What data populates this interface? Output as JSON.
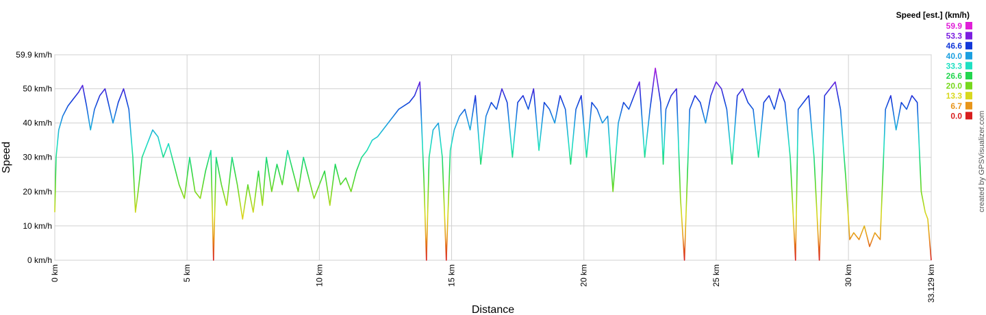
{
  "chart_data": {
    "type": "line",
    "xlabel": "Distance",
    "ylabel": "Speed",
    "xlim": [
      0,
      33.129
    ],
    "ylim": [
      0,
      59.9
    ],
    "x_ticks": [
      {
        "value": 0,
        "label": "0 km"
      },
      {
        "value": 5,
        "label": "5 km"
      },
      {
        "value": 10,
        "label": "10 km"
      },
      {
        "value": 15,
        "label": "15 km"
      },
      {
        "value": 20,
        "label": "20 km"
      },
      {
        "value": 25,
        "label": "25 km"
      },
      {
        "value": 30,
        "label": "30 km"
      },
      {
        "value": 33.129,
        "label": "33.129 km"
      }
    ],
    "y_ticks": [
      {
        "value": 0,
        "label": "0 km/h"
      },
      {
        "value": 10,
        "label": "10 km/h"
      },
      {
        "value": 20,
        "label": "20 km/h"
      },
      {
        "value": 30,
        "label": "30 km/h"
      },
      {
        "value": 40,
        "label": "40 km/h"
      },
      {
        "value": 50,
        "label": "50 km/h"
      },
      {
        "value": 59.9,
        "label": "59.9 km/h"
      }
    ],
    "grid": true,
    "legend": {
      "title": "Speed [est.] (km/h)",
      "placement": "top-right",
      "entries": [
        {
          "label": "59.9",
          "color": "#e01ed8"
        },
        {
          "label": "53.3",
          "color": "#7b1fe0"
        },
        {
          "label": "46.6",
          "color": "#1238d9"
        },
        {
          "label": "40.0",
          "color": "#1a9fe0"
        },
        {
          "label": "33.3",
          "color": "#1ee0c2"
        },
        {
          "label": "26.6",
          "color": "#22d64e"
        },
        {
          "label": "20.0",
          "color": "#77d81c"
        },
        {
          "label": "13.3",
          "color": "#d8d81e"
        },
        {
          "label": "6.7",
          "color": "#e8951a"
        },
        {
          "label": "0.0",
          "color": "#d81e1e"
        }
      ]
    },
    "series": [
      {
        "x": [
          0,
          0.05,
          0.15,
          0.3,
          0.5,
          0.7,
          0.9,
          1.05,
          1.2,
          1.35,
          1.5,
          1.7,
          1.9,
          2.05,
          2.2,
          2.4,
          2.6,
          2.8,
          2.95,
          3.05,
          3.15,
          3.3,
          3.5,
          3.7,
          3.9,
          4.1,
          4.3,
          4.5,
          4.7,
          4.9,
          5.1,
          5.3,
          5.5,
          5.7,
          5.9,
          6.0,
          6.1,
          6.3,
          6.5,
          6.7,
          6.9,
          7.1,
          7.3,
          7.5,
          7.7,
          7.85,
          8.0,
          8.2,
          8.4,
          8.6,
          8.8,
          9.0,
          9.2,
          9.4,
          9.6,
          9.8,
          10.0,
          10.2,
          10.4,
          10.6,
          10.8,
          11.0,
          11.2,
          11.4,
          11.6,
          11.8,
          12.0,
          12.2,
          12.4,
          12.6,
          12.8,
          13.0,
          13.2,
          13.4,
          13.6,
          13.8,
          13.95,
          14.05,
          14.15,
          14.3,
          14.5,
          14.65,
          14.8,
          14.95,
          15.1,
          15.3,
          15.5,
          15.7,
          15.9,
          16.1,
          16.3,
          16.5,
          16.7,
          16.9,
          17.1,
          17.3,
          17.5,
          17.7,
          17.9,
          18.1,
          18.3,
          18.5,
          18.7,
          18.9,
          19.1,
          19.3,
          19.5,
          19.7,
          19.9,
          20.1,
          20.3,
          20.5,
          20.7,
          20.9,
          21.1,
          21.3,
          21.5,
          21.7,
          21.9,
          22.1,
          22.3,
          22.5,
          22.7,
          22.9,
          23.0,
          23.1,
          23.3,
          23.5,
          23.65,
          23.8,
          24.0,
          24.2,
          24.4,
          24.6,
          24.8,
          25.0,
          25.2,
          25.4,
          25.6,
          25.8,
          26.0,
          26.2,
          26.4,
          26.6,
          26.8,
          27.0,
          27.2,
          27.4,
          27.6,
          27.8,
          28.0,
          28.1,
          28.3,
          28.5,
          28.7,
          28.9,
          29.1,
          29.3,
          29.5,
          29.7,
          29.9,
          30.05,
          30.2,
          30.4,
          30.6,
          30.8,
          31.0,
          31.2,
          31.4,
          31.6,
          31.8,
          32.0,
          32.2,
          32.4,
          32.6,
          32.75,
          32.9,
          33.0,
          33.129
        ],
        "values": [
          14,
          30,
          38,
          42,
          45,
          47,
          49,
          51,
          45,
          38,
          44,
          48,
          50,
          45,
          40,
          46,
          50,
          44,
          30,
          14,
          20,
          30,
          34,
          38,
          36,
          30,
          34,
          28,
          22,
          18,
          30,
          20,
          18,
          26,
          32,
          0,
          30,
          22,
          16,
          30,
          22,
          12,
          22,
          14,
          26,
          16,
          30,
          20,
          28,
          22,
          32,
          26,
          20,
          30,
          24,
          18,
          22,
          26,
          16,
          28,
          22,
          24,
          20,
          26,
          30,
          32,
          35,
          36,
          38,
          40,
          42,
          44,
          45,
          46,
          48,
          52,
          24,
          0,
          30,
          38,
          40,
          30,
          0,
          32,
          38,
          42,
          44,
          38,
          48,
          28,
          42,
          46,
          44,
          50,
          46,
          30,
          46,
          48,
          44,
          50,
          32,
          46,
          44,
          40,
          48,
          44,
          28,
          44,
          48,
          30,
          46,
          44,
          40,
          42,
          20,
          40,
          46,
          44,
          48,
          52,
          30,
          44,
          56,
          46,
          28,
          44,
          48,
          50,
          18,
          0,
          44,
          48,
          46,
          40,
          48,
          52,
          50,
          44,
          28,
          48,
          50,
          46,
          44,
          30,
          46,
          48,
          44,
          50,
          46,
          30,
          0,
          44,
          46,
          48,
          30,
          0,
          48,
          50,
          52,
          44,
          24,
          6,
          8,
          6,
          10,
          4,
          8,
          6,
          44,
          48,
          38,
          46,
          44,
          48,
          46,
          20,
          14,
          12,
          0
        ]
      }
    ]
  },
  "credit": "created by GPSVisualizer.com"
}
